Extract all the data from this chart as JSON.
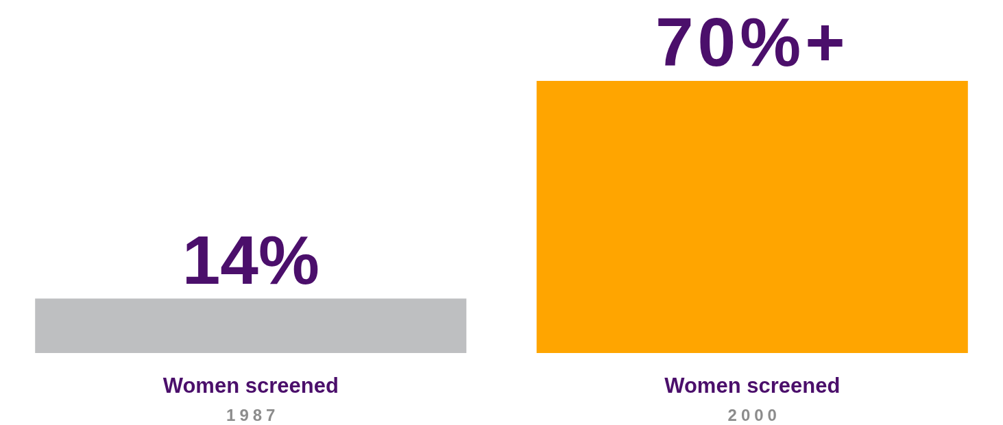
{
  "chart_data": {
    "type": "bar",
    "categories": [
      "Women screened\n1987",
      "Women screened\n2000"
    ],
    "values": [
      14,
      70
    ],
    "colors": [
      "#bebfc1",
      "#ffa500"
    ],
    "value_labels": [
      "14%",
      "70%+"
    ]
  }
}
